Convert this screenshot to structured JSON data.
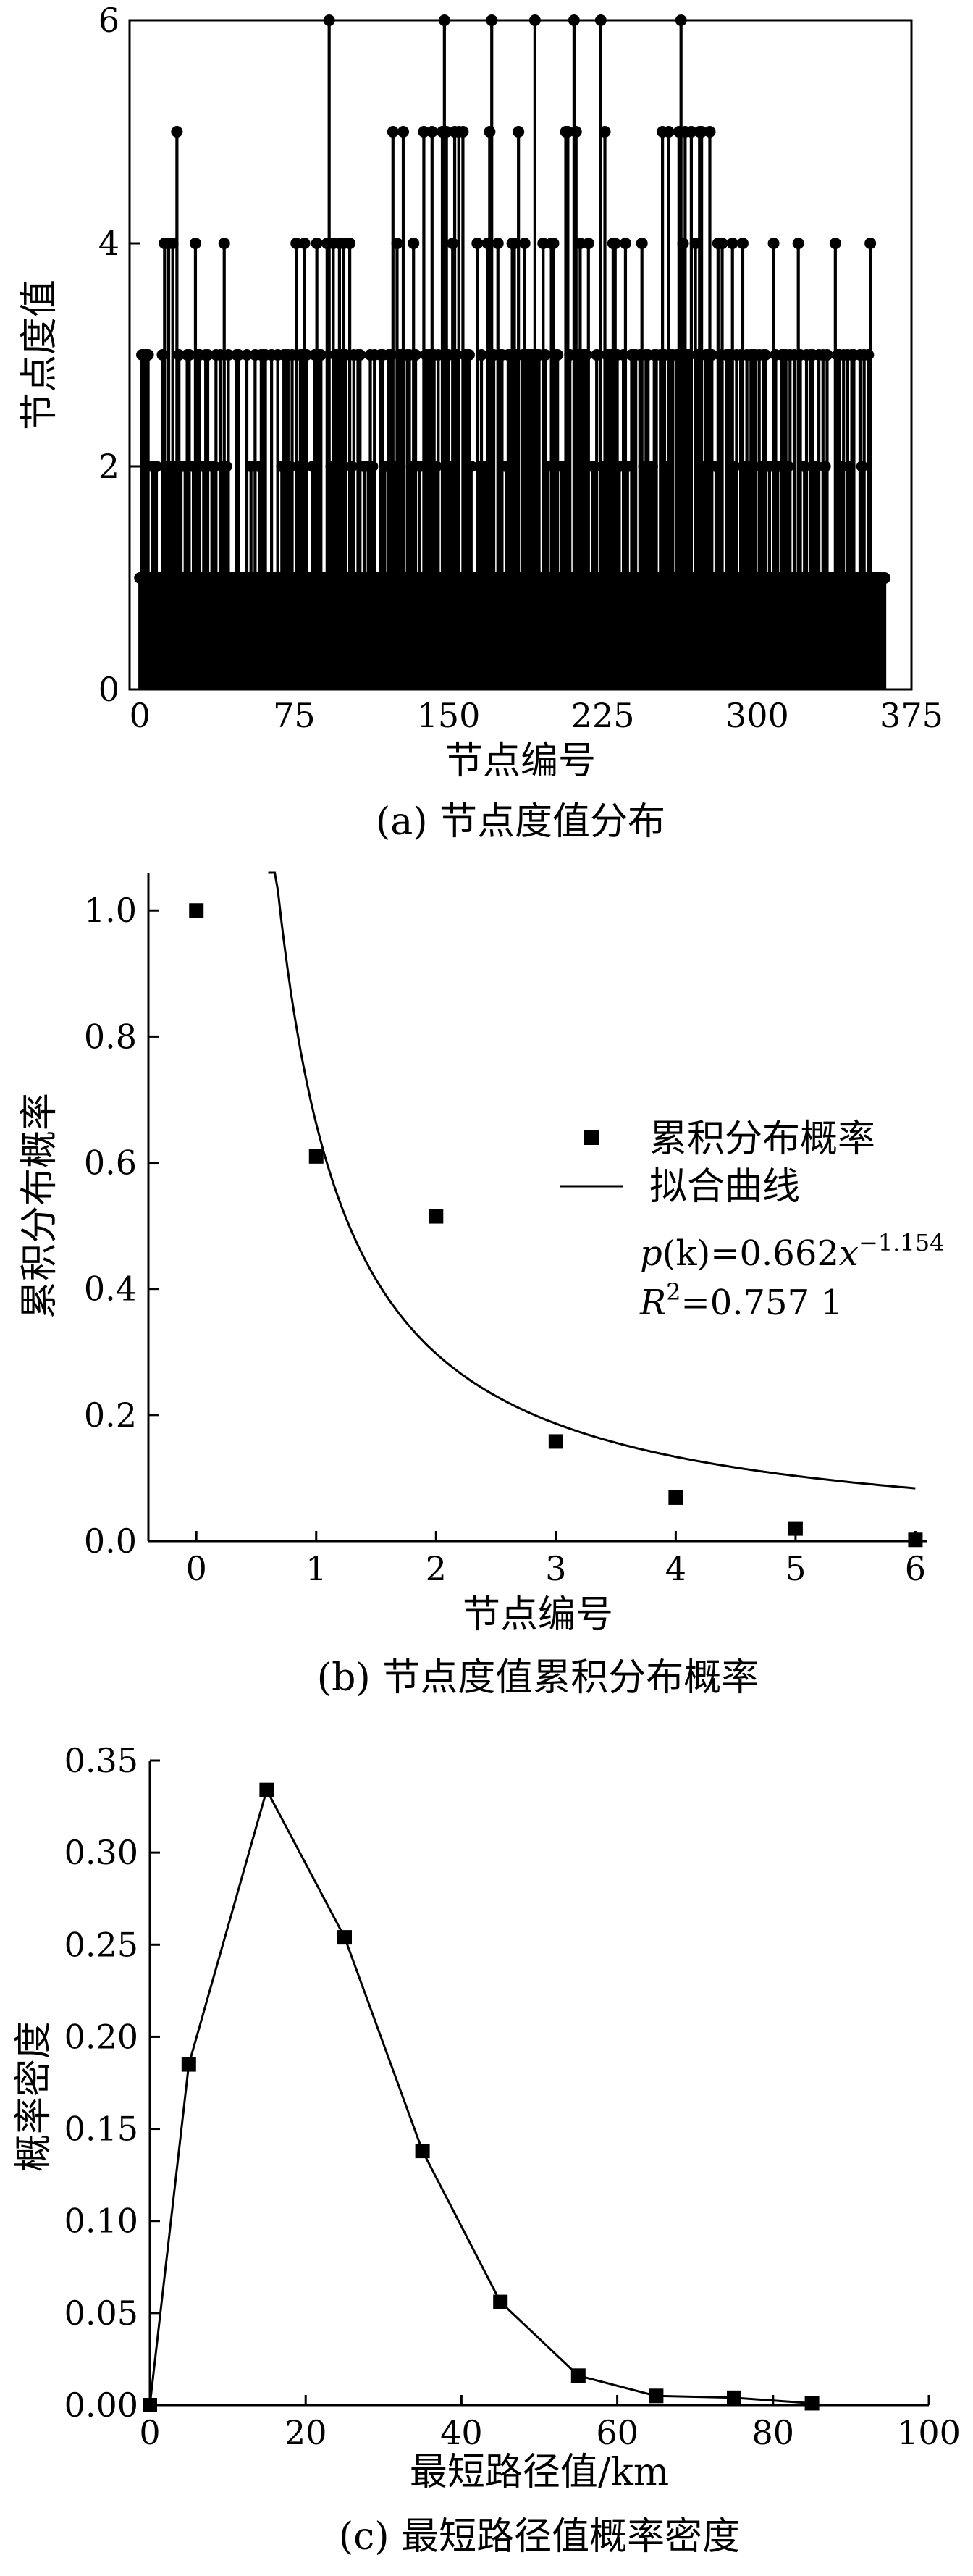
{
  "chart_data": [
    {
      "type": "stem",
      "caption": "(a) 节点度值分布",
      "xlabel": "节点编号",
      "ylabel": "节点度值",
      "xlim": [
        -5,
        375
      ],
      "ylim": [
        0,
        6
      ],
      "xticks": [
        0,
        75,
        150,
        225,
        300,
        375
      ],
      "yticks": [
        0,
        2,
        4,
        6
      ],
      "x_start": 0,
      "y": [
        1,
        3,
        3,
        3,
        3,
        1,
        2,
        2,
        2,
        1,
        1,
        3,
        4,
        2,
        4,
        2,
        4,
        2,
        5,
        3,
        2,
        1,
        2,
        3,
        3,
        1,
        2,
        4,
        3,
        3,
        1,
        2,
        3,
        3,
        1,
        2,
        2,
        3,
        1,
        3,
        2,
        4,
        2,
        3,
        1,
        1,
        1,
        3,
        3,
        1,
        1,
        1,
        3,
        1,
        2,
        1,
        3,
        1,
        2,
        3,
        3,
        3,
        1,
        1,
        3,
        1,
        1,
        3,
        1,
        2,
        3,
        3,
        3,
        2,
        3,
        1,
        4,
        2,
        3,
        3,
        4,
        3,
        1,
        1,
        2,
        3,
        4,
        3,
        3,
        1,
        1,
        4,
        6,
        2,
        4,
        3,
        3,
        4,
        3,
        4,
        3,
        1,
        4,
        2,
        3,
        1,
        3,
        3,
        1,
        2,
        1,
        2,
        3,
        2,
        3,
        1,
        1,
        3,
        3,
        2,
        1,
        3,
        3,
        5,
        2,
        4,
        3,
        3,
        5,
        1,
        3,
        3,
        2,
        4,
        3,
        1,
        2,
        1,
        5,
        3,
        3,
        3,
        5,
        3,
        2,
        3,
        1,
        5,
        6,
        5,
        3,
        2,
        4,
        5,
        3,
        5,
        1,
        5,
        3,
        3,
        3,
        2,
        1,
        1,
        4,
        2,
        3,
        2,
        2,
        4,
        5,
        6,
        3,
        1,
        4,
        3,
        3,
        1,
        2,
        3,
        3,
        4,
        4,
        3,
        5,
        1,
        3,
        4,
        3,
        3,
        3,
        3,
        6,
        3,
        3,
        1,
        4,
        3,
        2,
        1,
        4,
        4,
        3,
        3,
        1,
        2,
        2,
        5,
        5,
        3,
        1,
        6,
        5,
        3,
        4,
        3,
        3,
        3,
        4,
        1,
        2,
        2,
        3,
        1,
        6,
        2,
        5,
        3,
        3,
        3,
        4,
        4,
        3,
        2,
        1,
        3,
        4,
        2,
        1,
        3,
        3,
        3,
        1,
        3,
        4,
        2,
        3,
        3,
        2,
        2,
        3,
        3,
        1,
        3,
        5,
        3,
        2,
        5,
        3,
        3,
        1,
        3,
        5,
        6,
        4,
        5,
        3,
        3,
        5,
        1,
        4,
        3,
        5,
        5,
        2,
        3,
        3,
        5,
        3,
        1,
        2,
        4,
        3,
        4,
        1,
        3,
        3,
        3,
        4,
        2,
        3,
        1,
        3,
        4,
        2,
        3,
        2,
        3,
        3,
        3,
        1,
        3,
        2,
        3,
        3,
        1,
        2,
        1,
        4,
        3,
        2,
        1,
        3,
        3,
        3,
        2,
        3,
        1,
        3,
        1,
        4,
        3,
        1,
        2,
        3,
        1,
        3,
        3,
        2,
        2,
        3,
        1,
        3,
        2,
        3,
        1,
        1,
        1,
        4,
        3,
        3,
        2,
        3,
        1,
        3,
        2,
        3,
        3,
        1,
        1,
        3,
        2,
        3,
        1,
        3,
        4,
        1,
        1,
        1,
        1,
        1,
        1,
        1
      ]
    },
    {
      "type": "scatter",
      "caption": "(b) 节点度值累积分布概率",
      "xlabel": "节点编号",
      "ylabel": "累积分布概率",
      "xlim": [
        -0.4,
        6.1
      ],
      "ylim": [
        0,
        1.06
      ],
      "xticks": [
        0,
        1,
        2,
        3,
        4,
        5,
        6
      ],
      "yticks": [
        0.0,
        0.2,
        0.4,
        0.6,
        0.8,
        1.0
      ],
      "ytick_labels": [
        "0.0",
        "0.2",
        "0.4",
        "0.6",
        "0.8",
        "1.0"
      ],
      "series": [
        {
          "name": "累积分布概率",
          "kind": "scatter",
          "x": [
            0,
            1,
            2,
            3,
            4,
            5,
            6
          ],
          "y": [
            1.0,
            0.61,
            0.515,
            0.158,
            0.069,
            0.02,
            0.002
          ]
        },
        {
          "name": "拟合曲线",
          "kind": "curve",
          "coefficient": 0.662,
          "exponent": -1.154,
          "x_range": [
            0.6,
            6.0
          ]
        }
      ],
      "legend_position": "right",
      "annotation": {
        "p": "p",
        "k": "(k)",
        "eq": "=0.662",
        "x": "x",
        "exp": "−1.154",
        "R": "R",
        "two": "2",
        "r2val": "=0.757 1"
      }
    },
    {
      "type": "line",
      "caption": "(c) 最短路径值概率密度",
      "xlabel": "最短路径值/km",
      "ylabel": "概率密度",
      "xlim": [
        0,
        100
      ],
      "ylim": [
        0,
        0.35
      ],
      "xticks": [
        0,
        20,
        40,
        60,
        80,
        100
      ],
      "yticks": [
        0.0,
        0.05,
        0.1,
        0.15,
        0.2,
        0.25,
        0.3,
        0.35
      ],
      "ytick_labels": [
        "0.00",
        "0.05",
        "0.10",
        "0.15",
        "0.20",
        "0.25",
        "0.30",
        "0.35"
      ],
      "x": [
        0,
        5,
        15,
        25,
        35,
        45,
        55,
        65,
        75,
        85
      ],
      "y": [
        0.0,
        0.185,
        0.334,
        0.254,
        0.138,
        0.056,
        0.016,
        0.005,
        0.004,
        0.001
      ]
    }
  ]
}
